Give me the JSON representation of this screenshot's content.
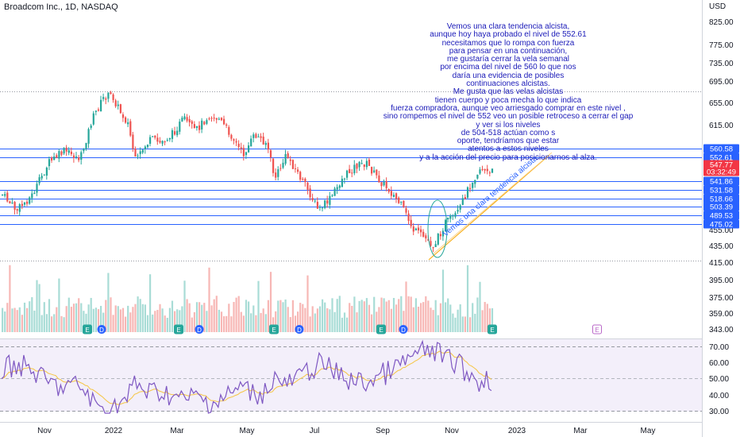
{
  "header": {
    "symbol_title": "Broadcom Inc., 1D, NASDAQ",
    "currency": "USD"
  },
  "annotation": {
    "note": "Vemos una clara tendencia alcista,\naunque hoy haya probado el nivel de 552.61\nnecesitamos que lo rompa con fuerza\npara pensar en una continuación,\nme gustaría cerrar la vela semanal\npor encima del nivel de 560 lo que nos\ndaría una evidencia de posibles\ncontinuaciones alcistas.\nMe gusta que las velas alcistas\ntienen cuerpo y poca mecha lo que indica\nfuerza compradora, aunque veo arriesgado comprar en este nivel ,\nsino rompemos el nivel de 552 veo un posible retroceso a cerrar el gap\ny ver si los niveles\nde 504-518 actúan como s\noporte, tendríamos que estar\natentos a estos niveles\ny a la acción del precio para posicionarnos al alza.",
    "trendline_label": "Vemos una clara tendencia alcista."
  },
  "price_axis": {
    "ticks": [
      "825.00",
      "775.00",
      "735.00",
      "695.00",
      "655.00",
      "615.00",
      "455.00",
      "435.00",
      "415.00",
      "395.00",
      "375.00",
      "359.00",
      "343.00"
    ]
  },
  "price_labels": {
    "levels": [
      {
        "value": "560.58",
        "color": "#2962ff"
      },
      {
        "value": "552.61",
        "color": "#2962ff"
      },
      {
        "value": "547.77",
        "color": "#f23645"
      },
      {
        "value": "03:32:49",
        "color": "#f23645"
      },
      {
        "value": "541.86",
        "color": "#2962ff"
      },
      {
        "value": "531.58",
        "color": "#2962ff"
      },
      {
        "value": "518.66",
        "color": "#2962ff"
      },
      {
        "value": "503.39",
        "color": "#2962ff"
      },
      {
        "value": "489.53",
        "color": "#2962ff"
      },
      {
        "value": "475.02",
        "color": "#2962ff"
      }
    ]
  },
  "rsi_axis": {
    "ticks": [
      "70.00",
      "60.00",
      "50.00",
      "40.00",
      "30.00"
    ]
  },
  "time_axis": {
    "labels": [
      "Nov",
      "2022",
      "Mar",
      "May",
      "Jul",
      "Sep",
      "Nov",
      "2023",
      "Mar",
      "May"
    ]
  },
  "event_markers": [
    "E",
    "D",
    "E",
    "D",
    "E",
    "D",
    "E",
    "D",
    "E",
    "E"
  ],
  "colors": {
    "up": "#26a69a",
    "down": "#ef5350",
    "level_line": "#2962ff",
    "rsi_line": "#7e57c2",
    "rsi_ma": "#f5c542",
    "trendline": "#f7a600"
  }
}
